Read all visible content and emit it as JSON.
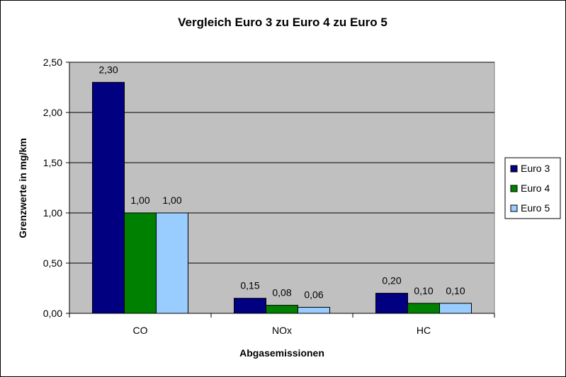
{
  "chart_data": {
    "type": "bar",
    "title": "Vergleich Euro 3 zu Euro 4 zu Euro 5",
    "xlabel": "Abgasemissionen",
    "ylabel": "Grenzwerte in mg/km",
    "categories": [
      "CO",
      "NOx",
      "HC"
    ],
    "series": [
      {
        "name": "Euro 3",
        "color": "#000080",
        "values": [
          2.3,
          0.15,
          0.2
        ],
        "labels": [
          "2,30",
          "0,15",
          "0,20"
        ]
      },
      {
        "name": "Euro 4",
        "color": "#008000",
        "values": [
          1.0,
          0.08,
          0.1
        ],
        "labels": [
          "1,00",
          "0,08",
          "0,10"
        ]
      },
      {
        "name": "Euro 5",
        "color": "#99CCFF",
        "values": [
          1.0,
          0.06,
          0.1
        ],
        "labels": [
          "1,00",
          "0,06",
          "0,10"
        ]
      }
    ],
    "ylim": [
      0,
      2.5
    ],
    "yticks": [
      0,
      0.5,
      1.0,
      1.5,
      2.0,
      2.5
    ],
    "ytick_labels": [
      "0,00",
      "0,50",
      "1,00",
      "1,50",
      "2,00",
      "2,50"
    ],
    "grid": true,
    "plot_background": "#C0C0C0",
    "legend_position": "right"
  }
}
